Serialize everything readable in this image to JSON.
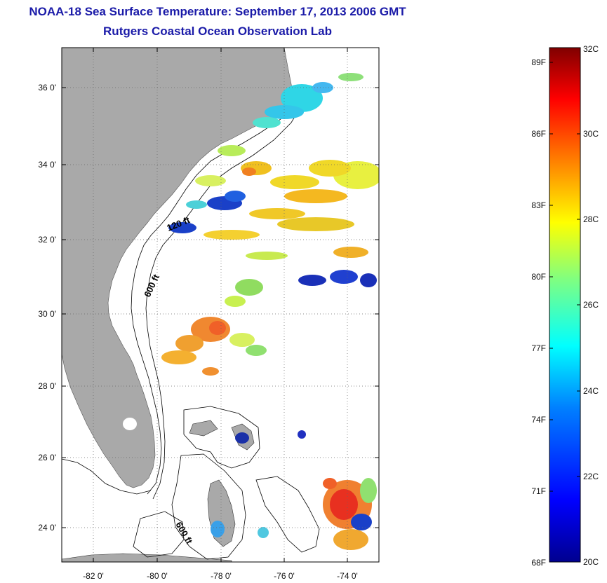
{
  "header": {
    "title": "NOAA-18 Sea Surface Temperature:  September 17, 2013 2006 GMT",
    "subtitle": "Rutgers Coastal Ocean Observation Lab"
  },
  "map": {
    "lon_range": [
      -83,
      -73
    ],
    "lat_range": [
      23,
      37
    ],
    "lon_ticks": [
      {
        "value": -82,
        "label": "-82 0'"
      },
      {
        "value": -80,
        "label": "-80 0'"
      },
      {
        "value": -78,
        "label": "-78 0'"
      },
      {
        "value": -76,
        "label": "-76 0'"
      },
      {
        "value": -74,
        "label": "-74 0'"
      }
    ],
    "lat_ticks": [
      {
        "value": 36,
        "label": "36 0'"
      },
      {
        "value": 34,
        "label": "34 0'"
      },
      {
        "value": 32,
        "label": "32 0'"
      },
      {
        "value": 30,
        "label": "30 0'"
      },
      {
        "value": 28,
        "label": "28 0'"
      },
      {
        "value": 26,
        "label": "26 0'"
      },
      {
        "value": 24,
        "label": "24 0'"
      }
    ],
    "contour_labels": [
      {
        "text": "120 ft",
        "lon": -80.9,
        "lat": 32.4
      },
      {
        "text": "600 ft",
        "lon": -80.4,
        "lat": 30.6
      },
      {
        "text": "600 ft",
        "lon": -79.5,
        "lat": 23.6
      }
    ],
    "land_color": "#a9a9a9",
    "ocean_color": "#ffffff"
  },
  "colorbar": {
    "fahrenheit_labels": [
      "89F",
      "86F",
      "83F",
      "80F",
      "77F",
      "74F",
      "71F",
      "68F"
    ],
    "celsius_labels": [
      "32C",
      "30C",
      "28C",
      "26C",
      "24C",
      "22C",
      "20C"
    ],
    "min_c": 20,
    "max_c": 32
  }
}
